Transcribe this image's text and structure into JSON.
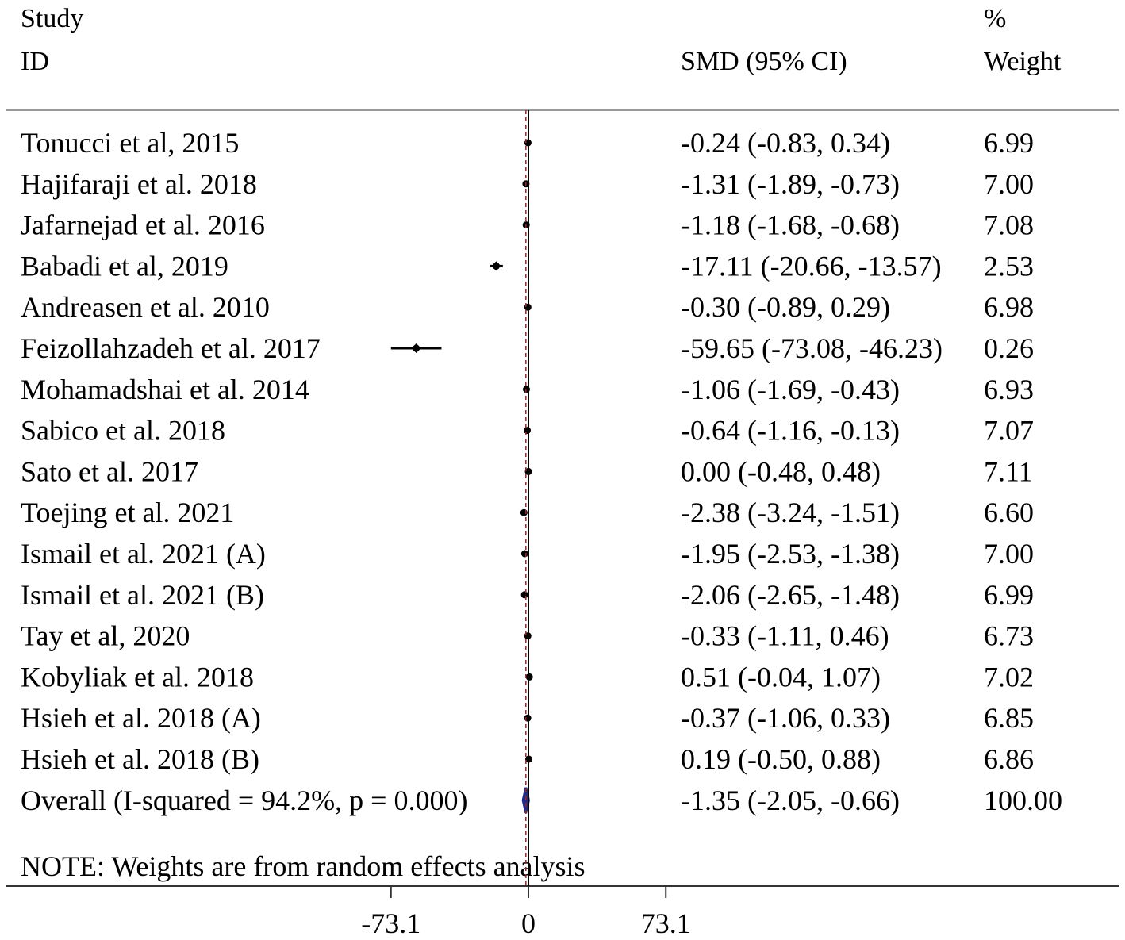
{
  "header": {
    "study_line1": "Study",
    "study_line2": "ID",
    "smd": "SMD (95% CI)",
    "weight_line1": "%",
    "weight_line2": "Weight"
  },
  "note": "NOTE: Weights are from random effects analysis",
  "axis": {
    "ticks": [
      {
        "value": -73.1,
        "label": "-73.1"
      },
      {
        "value": 0,
        "label": "0"
      },
      {
        "value": 73.1,
        "label": "73.1"
      }
    ]
  },
  "chart_data": {
    "type": "forest",
    "measure": "SMD",
    "null_value": 0,
    "studies": [
      {
        "label": "Tonucci et al, 2015",
        "est": -0.24,
        "lo": -0.83,
        "hi": 0.34,
        "ci_text": "-0.24 (-0.83, 0.34)",
        "weight": "6.99"
      },
      {
        "label": "Hajifaraji et al. 2018",
        "est": -1.31,
        "lo": -1.89,
        "hi": -0.73,
        "ci_text": "-1.31 (-1.89, -0.73)",
        "weight": "7.00"
      },
      {
        "label": "Jafarnejad et al. 2016",
        "est": -1.18,
        "lo": -1.68,
        "hi": -0.68,
        "ci_text": "-1.18 (-1.68, -0.68)",
        "weight": "7.08"
      },
      {
        "label": "Babadi et al, 2019",
        "est": -17.11,
        "lo": -20.66,
        "hi": -13.57,
        "ci_text": "-17.11 (-20.66, -13.57)",
        "weight": "2.53"
      },
      {
        "label": "Andreasen et al. 2010",
        "est": -0.3,
        "lo": -0.89,
        "hi": 0.29,
        "ci_text": "-0.30 (-0.89, 0.29)",
        "weight": "6.98"
      },
      {
        "label": "Feizollahzadeh et al. 2017",
        "est": -59.65,
        "lo": -73.08,
        "hi": -46.23,
        "ci_text": "-59.65 (-73.08, -46.23)",
        "weight": "0.26"
      },
      {
        "label": "Mohamadshai et al. 2014",
        "est": -1.06,
        "lo": -1.69,
        "hi": -0.43,
        "ci_text": "-1.06 (-1.69, -0.43)",
        "weight": "6.93"
      },
      {
        "label": "Sabico et al. 2018",
        "est": -0.64,
        "lo": -1.16,
        "hi": -0.13,
        "ci_text": "-0.64 (-1.16, -0.13)",
        "weight": "7.07"
      },
      {
        "label": "Sato et al. 2017",
        "est": 0.0,
        "lo": -0.48,
        "hi": 0.48,
        "ci_text": "0.00 (-0.48, 0.48)",
        "weight": "7.11"
      },
      {
        "label": "Toejing et al. 2021",
        "est": -2.38,
        "lo": -3.24,
        "hi": -1.51,
        "ci_text": "-2.38 (-3.24, -1.51)",
        "weight": "6.60"
      },
      {
        "label": "Ismail et al. 2021 (A)",
        "est": -1.95,
        "lo": -2.53,
        "hi": -1.38,
        "ci_text": "-1.95 (-2.53, -1.38)",
        "weight": "7.00"
      },
      {
        "label": "Ismail et al. 2021 (B)",
        "est": -2.06,
        "lo": -2.65,
        "hi": -1.48,
        "ci_text": "-2.06 (-2.65, -1.48)",
        "weight": "6.99"
      },
      {
        "label": "Tay et al, 2020",
        "est": -0.33,
        "lo": -1.11,
        "hi": 0.46,
        "ci_text": "-0.33 (-1.11, 0.46)",
        "weight": "6.73"
      },
      {
        "label": "Kobyliak et al. 2018",
        "est": 0.51,
        "lo": -0.04,
        "hi": 1.07,
        "ci_text": "0.51 (-0.04, 1.07)",
        "weight": "7.02"
      },
      {
        "label": "Hsieh et al. 2018 (A)",
        "est": -0.37,
        "lo": -1.06,
        "hi": 0.33,
        "ci_text": "-0.37 (-1.06, 0.33)",
        "weight": "6.85"
      },
      {
        "label": "Hsieh et al. 2018 (B)",
        "est": 0.19,
        "lo": -0.5,
        "hi": 0.88,
        "ci_text": "0.19 (-0.50, 0.88)",
        "weight": "6.86"
      }
    ],
    "overall": {
      "label": "Overall  (I-squared = 94.2%, p = 0.000)",
      "est": -1.35,
      "lo": -2.05,
      "hi": -0.66,
      "ci_text": "-1.35 (-2.05, -0.66)",
      "weight": "100.00"
    },
    "colors": {
      "marker": "#000000",
      "overall_diamond": "#1f2b8c",
      "overall_line": "#8b2a2a"
    }
  }
}
